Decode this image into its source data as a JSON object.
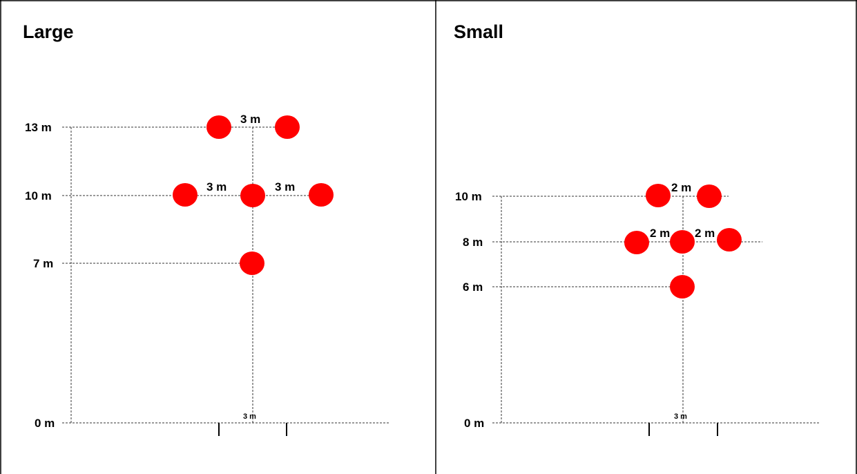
{
  "panels": [
    {
      "title": "Large",
      "y_labels": [
        "13 m",
        "10 m",
        "7 m",
        "0 m"
      ],
      "spacing_labels": [
        "3 m",
        "3 m",
        "3 m"
      ],
      "bottom_spacing_label": "3 m"
    },
    {
      "title": "Small",
      "y_labels": [
        "10 m",
        "8 m",
        "6 m",
        "0 m"
      ],
      "spacing_labels": [
        "2 m",
        "2 m",
        "2 m"
      ],
      "bottom_spacing_label": "3 m"
    }
  ],
  "colors": {
    "marker": "#ff0000",
    "line": "#333333",
    "border": "#000000"
  }
}
